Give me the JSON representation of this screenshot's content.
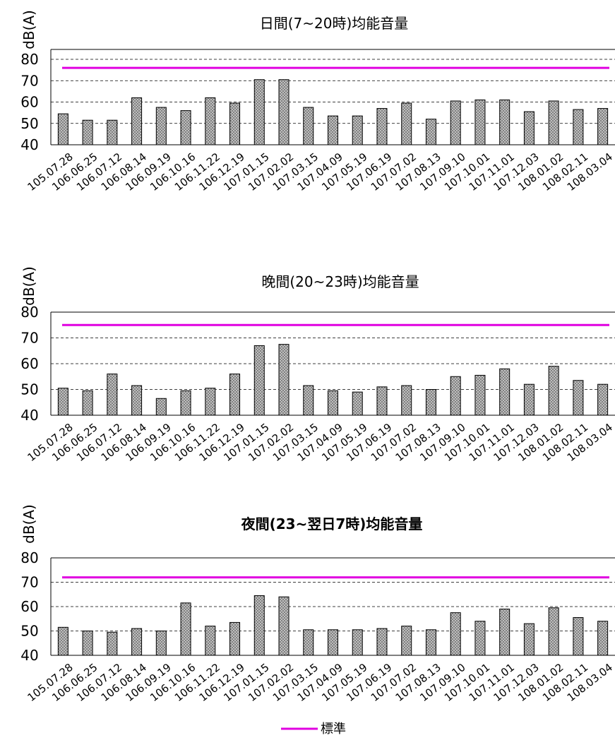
{
  "colors": {
    "standard_line": "#e000e0",
    "bar_stroke": "#000000",
    "bar_fill_base": "#bfbfbf",
    "bar_fill_dots": "#555555",
    "grid": "#000000"
  },
  "chart_data": [
    {
      "type": "bar",
      "title": "日間(7~20時)均能音量",
      "ylabel": "dB(A)",
      "xlabel": "",
      "ylim": [
        40,
        80
      ],
      "yticks": [
        40,
        50,
        60,
        70,
        80
      ],
      "grid": "dashed-horizontal",
      "categories": [
        "105.07.28",
        "106.06.25",
        "106.07.12",
        "106.08.14",
        "106.09.19",
        "106.10.16",
        "106.11.22",
        "106.12.19",
        "107.01.15",
        "107.02.02",
        "107.03.15",
        "107.04.09",
        "107.05.19",
        "107.06.19",
        "107.07.02",
        "107.08.13",
        "107.09.10",
        "107.10.01",
        "107.11.01",
        "107.12.03",
        "108.01.02",
        "108.02.11",
        "108.03.04"
      ],
      "series": [
        {
          "values": [
            54.5,
            51.5,
            51.5,
            62,
            57.5,
            56,
            62,
            59.5,
            70.5,
            70.5,
            57.5,
            53.5,
            53.5,
            57,
            59.5,
            52,
            60.5,
            61,
            61,
            55.5,
            60.5,
            56.5,
            57
          ]
        }
      ],
      "standard": 76
    },
    {
      "type": "bar",
      "title": "晚間(20~23時)均能音量",
      "ylabel": "dB(A)",
      "xlabel": "",
      "ylim": [
        40,
        80
      ],
      "yticks": [
        40,
        50,
        60,
        70,
        80
      ],
      "grid": "dashed-horizontal",
      "categories": [
        "105.07.28",
        "106.06.25",
        "106.07.12",
        "106.08.14",
        "106.09.19",
        "106.10.16",
        "106.11.22",
        "106.12.19",
        "107.01.15",
        "107.02.02",
        "107.03.15",
        "107.04.09",
        "107.05.19",
        "107.06.19",
        "107.07.02",
        "107.08.13",
        "107.09.10",
        "107.10.01",
        "107.11.01",
        "107.12.03",
        "108.01.02",
        "108.02.11",
        "108.03.04"
      ],
      "series": [
        {
          "values": [
            50.5,
            49.5,
            56,
            51.5,
            46.5,
            49.5,
            50.5,
            56,
            67,
            67.5,
            51.5,
            49.5,
            49,
            51,
            51.5,
            50,
            55,
            55.5,
            58,
            52,
            59,
            53.5,
            52
          ]
        }
      ],
      "standard": 75
    },
    {
      "type": "bar",
      "title": "夜間(23~翌日7時)均能音量",
      "ylabel": "dB(A)",
      "xlabel": "",
      "ylim": [
        40,
        80
      ],
      "yticks": [
        40,
        50,
        60,
        70,
        80
      ],
      "grid": "dashed-horizontal",
      "categories": [
        "105.07.28",
        "106.06.25",
        "106.07.12",
        "106.08.14",
        "106.09.19",
        "106.10.16",
        "106.11.22",
        "106.12.19",
        "107.01.15",
        "107.02.02",
        "107.03.15",
        "107.04.09",
        "107.05.19",
        "107.06.19",
        "107.07.02",
        "107.08.13",
        "107.09.10",
        "107.10.01",
        "107.11.01",
        "107.12.03",
        "108.01.02",
        "108.02.11",
        "108.03.04"
      ],
      "series": [
        {
          "values": [
            51.5,
            50,
            49.5,
            51,
            50,
            61.5,
            52,
            53.5,
            64.5,
            64,
            50.5,
            50.5,
            50.5,
            51,
            52,
            50.5,
            57.5,
            54,
            59,
            53,
            59.5,
            55.5,
            54
          ]
        }
      ],
      "standard": 72
    }
  ],
  "legend": {
    "label": "標準"
  }
}
